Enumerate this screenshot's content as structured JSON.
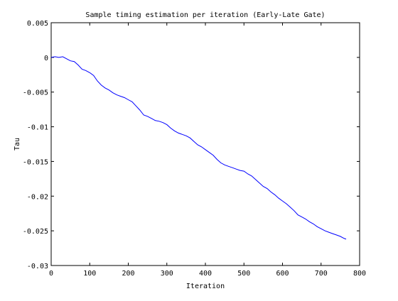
{
  "chart_data": {
    "type": "line",
    "title": "Sample timing estimation per iteration (Early-Late Gate)",
    "xlabel": "Iteration",
    "ylabel": "Tau",
    "xlim": [
      0,
      800
    ],
    "ylim": [
      -0.03,
      0.005
    ],
    "xticks": [
      0,
      100,
      200,
      300,
      400,
      500,
      600,
      700,
      800
    ],
    "yticks": [
      0.005,
      0,
      -0.005,
      -0.01,
      -0.015,
      -0.02,
      -0.025,
      -0.03
    ],
    "xtick_labels": [
      "0",
      "100",
      "200",
      "300",
      "400",
      "500",
      "600",
      "700",
      "800"
    ],
    "ytick_labels": [
      "0.005",
      "0",
      "-0.005",
      "-0.01",
      "-0.015",
      "-0.02",
      "-0.025",
      "-0.03"
    ],
    "grid": false,
    "legend": "none",
    "series": [
      {
        "color": "#0000ff",
        "x": [
          0,
          10,
          20,
          30,
          40,
          50,
          60,
          70,
          80,
          90,
          100,
          110,
          120,
          130,
          140,
          150,
          160,
          170,
          180,
          190,
          200,
          210,
          220,
          230,
          240,
          250,
          260,
          270,
          280,
          290,
          300,
          310,
          320,
          330,
          340,
          350,
          360,
          370,
          380,
          390,
          400,
          410,
          420,
          430,
          440,
          450,
          460,
          470,
          480,
          490,
          500,
          510,
          520,
          530,
          540,
          550,
          560,
          570,
          580,
          590,
          600,
          610,
          620,
          630,
          640,
          650,
          660,
          670,
          680,
          690,
          700,
          710,
          720,
          730,
          740,
          750,
          760,
          765
        ],
        "y": [
          0,
          0.0001,
          0,
          0.0001,
          -0.0002,
          -0.0005,
          -0.0006,
          -0.0011,
          -0.0017,
          -0.0019,
          -0.0022,
          -0.0026,
          -0.0034,
          -0.004,
          -0.0044,
          -0.0047,
          -0.0051,
          -0.0054,
          -0.0056,
          -0.0058,
          -0.0061,
          -0.0064,
          -0.007,
          -0.0076,
          -0.0083,
          -0.0085,
          -0.0088,
          -0.0091,
          -0.0092,
          -0.0094,
          -0.0097,
          -0.0102,
          -0.0106,
          -0.0109,
          -0.0111,
          -0.0113,
          -0.0116,
          -0.0121,
          -0.0126,
          -0.0129,
          -0.0133,
          -0.0137,
          -0.0141,
          -0.0147,
          -0.0152,
          -0.0155,
          -0.0157,
          -0.0159,
          -0.0161,
          -0.0163,
          -0.0164,
          -0.0168,
          -0.0171,
          -0.0176,
          -0.0181,
          -0.0186,
          -0.0189,
          -0.0194,
          -0.0198,
          -0.0203,
          -0.0207,
          -0.0211,
          -0.0216,
          -0.0221,
          -0.0227,
          -0.023,
          -0.0233,
          -0.0237,
          -0.024,
          -0.0244,
          -0.0247,
          -0.025,
          -0.0252,
          -0.0254,
          -0.0256,
          -0.0258,
          -0.0261,
          -0.0262
        ]
      }
    ]
  }
}
